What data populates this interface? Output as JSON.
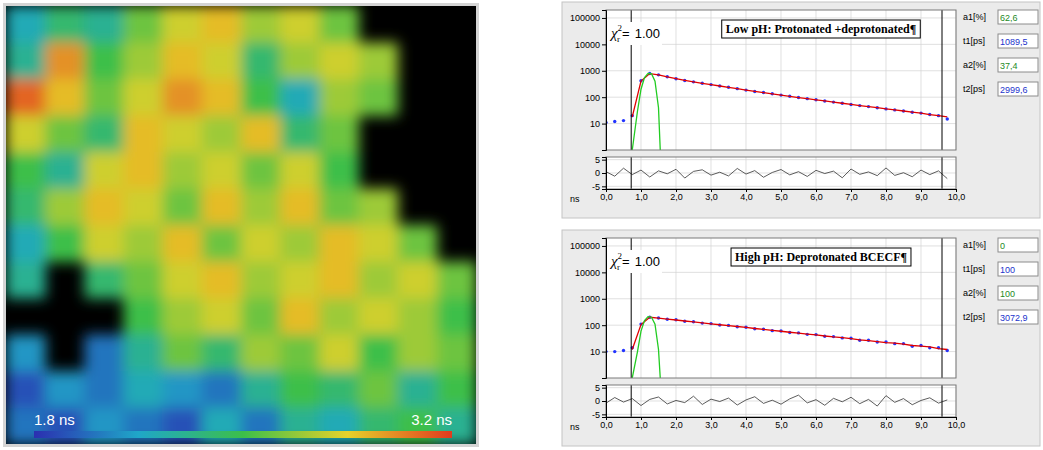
{
  "chart_data": [
    {
      "type": "heatmap",
      "cells": [
        [
          2.2,
          2.4,
          2.3,
          2.6,
          2.8,
          2.9,
          2.7,
          2.8,
          2.6,
          null,
          null,
          null
        ],
        [
          2.3,
          3.0,
          2.5,
          2.7,
          2.9,
          2.8,
          2.4,
          2.7,
          2.8,
          2.7,
          null,
          null
        ],
        [
          3.1,
          2.9,
          2.6,
          2.8,
          3.0,
          2.9,
          2.5,
          2.2,
          2.7,
          2.6,
          null,
          null
        ],
        [
          2.8,
          2.6,
          2.4,
          2.9,
          2.8,
          2.7,
          2.9,
          2.4,
          2.6,
          null,
          null,
          null
        ],
        [
          2.5,
          2.3,
          2.8,
          2.9,
          2.7,
          2.8,
          2.6,
          2.8,
          2.5,
          null,
          null,
          null
        ],
        [
          2.4,
          2.7,
          2.9,
          2.8,
          2.6,
          2.9,
          2.7,
          2.9,
          2.6,
          2.7,
          null,
          null
        ],
        [
          2.2,
          2.5,
          2.8,
          2.7,
          2.9,
          2.6,
          2.8,
          2.7,
          2.9,
          2.8,
          2.6,
          null
        ],
        [
          2.3,
          null,
          2.4,
          2.6,
          2.8,
          2.9,
          2.7,
          2.8,
          2.9,
          2.7,
          2.8,
          2.6
        ],
        [
          null,
          null,
          null,
          2.5,
          2.7,
          2.8,
          2.6,
          2.9,
          2.7,
          2.8,
          2.7,
          2.5
        ],
        [
          2.1,
          null,
          2.0,
          2.3,
          2.6,
          2.4,
          2.7,
          2.6,
          2.8,
          2.5,
          2.7,
          2.6
        ],
        [
          1.9,
          2.1,
          2.0,
          2.2,
          2.1,
          2.0,
          2.3,
          2.5,
          2.4,
          2.6,
          2.3,
          2.5
        ],
        [
          2.0,
          1.9,
          2.1,
          2.0,
          1.9,
          2.2,
          2.0,
          2.3,
          2.2,
          2.4,
          2.5,
          2.3
        ]
      ],
      "colorbar": {
        "range": [
          1.8,
          3.2
        ],
        "ticks": [
          {
            "value": 1.8,
            "label": "1.8 ns"
          },
          {
            "value": 3.2,
            "label": "3.2 ns"
          }
        ]
      }
    },
    {
      "type": "line",
      "title": "Low pH: Protonated +deprotonated¶",
      "log": "y",
      "grid": true,
      "x_label": "ns",
      "xlim": [
        0,
        10
      ],
      "xticks": [
        {
          "value": 0,
          "label": "0,0"
        },
        {
          "value": 1,
          "label": "1,0"
        },
        {
          "value": 2,
          "label": "2,0"
        },
        {
          "value": 3,
          "label": "3,0"
        },
        {
          "value": 4,
          "label": "4,0"
        },
        {
          "value": 5,
          "label": "5,0"
        },
        {
          "value": 6,
          "label": "6,0"
        },
        {
          "value": 7,
          "label": "7,0"
        },
        {
          "value": 8,
          "label": "8,0"
        },
        {
          "value": 9,
          "label": "9,0"
        },
        {
          "value": 10,
          "label": "10,0"
        }
      ],
      "ylim": [
        1,
        200000
      ],
      "yticks": [
        10,
        100,
        1000,
        10000,
        100000
      ],
      "x": [
        0,
        0.25,
        0.5,
        0.75,
        1.0,
        1.25,
        1.5,
        1.75,
        2.0,
        2.25,
        2.5,
        2.75,
        3.0,
        3.25,
        3.5,
        3.75,
        4.0,
        4.25,
        4.5,
        4.75,
        5.0,
        5.25,
        5.5,
        5.75,
        6.0,
        6.25,
        6.5,
        6.75,
        7.0,
        7.25,
        7.5,
        7.75,
        8.0,
        8.25,
        8.5,
        8.75,
        9.0,
        9.25,
        9.5,
        9.75
      ],
      "series": [
        {
          "type": "scatter",
          "color": "#2233ff",
          "marker": "circle",
          "line_style": "none",
          "values": [
            11,
            12,
            13,
            20,
            420,
            790,
            700,
            590,
            500,
            430,
            380,
            335,
            300,
            265,
            238,
            210,
            185,
            165,
            150,
            134,
            120,
            108,
            97,
            88,
            80,
            72,
            65,
            59,
            53,
            48,
            44,
            40,
            36,
            33,
            30,
            27,
            25,
            22,
            20,
            15
          ]
        },
        {
          "type": "line",
          "color": "#e00000",
          "values": [
            null,
            null,
            null,
            18,
            410,
            780,
            695,
            588,
            500,
            432,
            378,
            335,
            298,
            265,
            236,
            210,
            186,
            166,
            149,
            134,
            120,
            108,
            97,
            88,
            79,
            72,
            65,
            59,
            53,
            48,
            44,
            40,
            36,
            33,
            30,
            27,
            25,
            22,
            20,
            18
          ]
        },
        {
          "type": "line",
          "color": "#22cc22",
          "x": [
            0.75,
            0.9,
            1.0,
            1.1,
            1.2,
            1.3,
            1.4,
            1.5,
            1.55
          ],
          "values": [
            1,
            30,
            200,
            550,
            800,
            780,
            400,
            40,
            1
          ]
        }
      ],
      "residuals": {
        "ylim": [
          -6,
          6
        ],
        "yticks": [
          5,
          0,
          -5
        ],
        "values": [
          0.5,
          -1.2,
          1.8,
          -0.6,
          1.1,
          -1.5,
          0.8,
          -0.3,
          1.4,
          -1.9,
          0.6,
          1.2,
          -0.8,
          0.3,
          -1.1,
          1.7,
          -0.4,
          0.9,
          -1.6,
          0.2,
          1.3,
          -0.7,
          0.5,
          -1.3,
          1.0,
          -0.2,
          0.7,
          -1.8,
          1.5,
          -0.5,
          0.4,
          -1.0,
          1.9,
          -0.9,
          0.1,
          -1.4,
          1.1,
          -0.6,
          0.8,
          -2.1
        ]
      },
      "fit_range": [
        0.72,
        9.6
      ],
      "fit_quality": {
        "symbol": "χ",
        "sup": "2",
        "sub": "r",
        "relation": "=",
        "value": 1.0,
        "value_label": "1.00"
      },
      "parameters": [
        {
          "label": "a1[%]",
          "value": 62.6,
          "value_label": "62,6"
        },
        {
          "label": "t1[ps]",
          "value": 1089.5,
          "value_label": "1089,5"
        },
        {
          "label": "a2[%]",
          "value": 37.4,
          "value_label": "37,4"
        },
        {
          "label": "t2[ps]",
          "value": 2999.6,
          "value_label": "2999,6"
        }
      ]
    },
    {
      "type": "line",
      "title": "High pH: Deprotonated BCECF¶",
      "log": "y",
      "grid": true,
      "x_label": "ns",
      "xlim": [
        0,
        10
      ],
      "xticks": [
        {
          "value": 0,
          "label": "0,0"
        },
        {
          "value": 1,
          "label": "1,0"
        },
        {
          "value": 2,
          "label": "2,0"
        },
        {
          "value": 3,
          "label": "3,0"
        },
        {
          "value": 4,
          "label": "4,0"
        },
        {
          "value": 5,
          "label": "5,0"
        },
        {
          "value": 6,
          "label": "6,0"
        },
        {
          "value": 7,
          "label": "7,0"
        },
        {
          "value": 8,
          "label": "8,0"
        },
        {
          "value": 9,
          "label": "9,0"
        },
        {
          "value": 10,
          "label": "10,0"
        }
      ],
      "ylim": [
        1,
        200000
      ],
      "yticks": [
        10,
        100,
        1000,
        10000,
        100000
      ],
      "x": [
        0,
        0.25,
        0.5,
        0.75,
        1.0,
        1.25,
        1.5,
        1.75,
        2.0,
        2.25,
        2.5,
        2.75,
        3.0,
        3.25,
        3.5,
        3.75,
        4.0,
        4.25,
        4.5,
        4.75,
        5.0,
        5.25,
        5.5,
        5.75,
        6.0,
        6.25,
        6.5,
        6.75,
        7.0,
        7.25,
        7.5,
        7.75,
        8.0,
        8.25,
        8.5,
        8.75,
        9.0,
        9.25,
        9.5,
        9.75
      ],
      "series": [
        {
          "type": "scatter",
          "color": "#2233ff",
          "marker": "circle",
          "line_style": "none",
          "values": [
            10,
            10,
            11,
            14,
            110,
            200,
            188,
            168,
            160,
            141,
            135,
            120,
            115,
            102,
            98,
            87,
            84,
            73,
            70,
            62,
            60,
            53,
            51,
            45,
            44,
            38,
            37,
            33,
            32,
            27,
            27,
            23,
            23,
            20,
            20,
            16,
            17,
            14,
            14,
            11
          ]
        },
        {
          "type": "line",
          "color": "#e00000",
          "values": [
            null,
            null,
            null,
            12,
            105,
            200,
            184,
            170,
            157,
            144,
            133,
            123,
            113,
            104,
            96,
            89,
            82,
            75,
            69,
            64,
            59,
            54,
            50,
            46,
            43,
            39,
            36,
            34,
            31,
            28,
            26,
            24,
            22,
            21,
            19,
            17,
            16,
            15,
            13,
            12
          ]
        },
        {
          "type": "line",
          "color": "#22cc22",
          "x": [
            0.75,
            0.9,
            1.0,
            1.1,
            1.2,
            1.3,
            1.4,
            1.5,
            1.55
          ],
          "values": [
            1,
            10,
            60,
            150,
            210,
            200,
            110,
            12,
            1
          ]
        }
      ],
      "residuals": {
        "ylim": [
          -6,
          6
        ],
        "yticks": [
          5,
          0,
          -5
        ],
        "values": [
          -0.8,
          1.3,
          -0.4,
          0.9,
          -1.7,
          0.6,
          1.5,
          -1.1,
          0.2,
          -0.6,
          1.8,
          -1.3,
          0.7,
          -0.2,
          1.1,
          -1.5,
          0.4,
          1.6,
          -0.9,
          0.3,
          -1.2,
          0.8,
          2.2,
          -0.7,
          0.5,
          -1.6,
          1.0,
          -0.3,
          1.4,
          -1.0,
          0.6,
          -1.9,
          2.0,
          -0.5,
          0.9,
          -1.4,
          0.2,
          1.2,
          -0.8,
          0.4
        ]
      },
      "fit_range": [
        0.72,
        9.6
      ],
      "fit_quality": {
        "symbol": "χ",
        "sup": "2",
        "sub": "r",
        "relation": "=",
        "value": 1.0,
        "value_label": "1.00"
      },
      "parameters": [
        {
          "label": "a1[%]",
          "value": 0
        },
        {
          "label": "t1[ps]",
          "value": 100
        },
        {
          "label": "a2[%]",
          "value": 100
        },
        {
          "label": "t2[ps]",
          "value": 3072.9,
          "value_label": "3072,9"
        }
      ]
    }
  ]
}
